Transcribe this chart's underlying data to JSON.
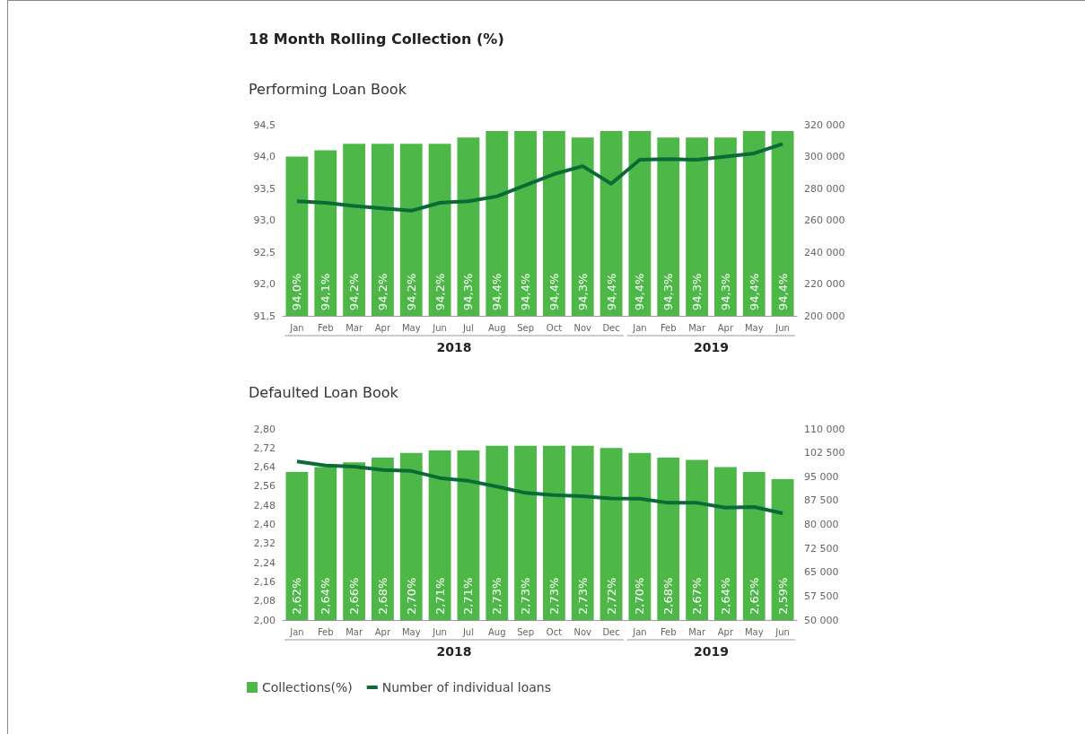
{
  "chart_data": [
    {
      "type": "bar",
      "title": "18 Month Rolling Collection (%)",
      "subtitle": "Performing Loan Book",
      "categories": [
        "Jan",
        "Feb",
        "Mar",
        "Apr",
        "May",
        "Jun",
        "Jul",
        "Aug",
        "Sep",
        "Oct",
        "Nov",
        "Dec",
        "Jan",
        "Feb",
        "Mar",
        "Apr",
        "May",
        "Jun"
      ],
      "annotations": [
        "2018",
        "2019"
      ],
      "series": [
        {
          "color": "#4db848",
          "values": [
            94.0,
            94.1,
            94.2,
            94.2,
            94.2,
            94.2,
            94.3,
            94.4,
            94.4,
            94.4,
            94.3,
            94.4,
            94.4,
            94.3,
            94.3,
            94.3,
            94.4,
            94.4
          ],
          "value_labels": [
            "94,0%",
            "94,1%",
            "94,2%",
            "94,2%",
            "94,2%",
            "94,2%",
            "94,3%",
            "94,4%",
            "94,4%",
            "94,4%",
            "94,3%",
            "94,4%",
            "94,4%",
            "94,3%",
            "94,3%",
            "94,3%",
            "94,4%",
            "94,4%"
          ]
        },
        {
          "type": "line",
          "axis": "y2",
          "color": "#0b6a36",
          "values": [
            272000,
            271000,
            269000,
            267500,
            266000,
            271000,
            272000,
            275000,
            282000,
            289000,
            294000,
            283000,
            298000,
            298500,
            298000,
            300000,
            302000,
            308000
          ]
        }
      ],
      "ylim": [
        91.5,
        94.5
      ],
      "yticks": [
        {
          "value": 91.5,
          "label": "91,5"
        },
        {
          "value": 92.0,
          "label": "92,0"
        },
        {
          "value": 92.5,
          "label": "92,5"
        },
        {
          "value": 93.0,
          "label": "93,0"
        },
        {
          "value": 93.5,
          "label": "93,5"
        },
        {
          "value": 94.0,
          "label": "94,0"
        },
        {
          "value": 94.5,
          "label": "94,5"
        }
      ],
      "y2lim": [
        200000,
        320000
      ],
      "y2ticks": [
        {
          "value": 200000,
          "label": "200 000"
        },
        {
          "value": 220000,
          "label": "220 000"
        },
        {
          "value": 240000,
          "label": "240 000"
        },
        {
          "value": 260000,
          "label": "260 000"
        },
        {
          "value": 280000,
          "label": "280 000"
        },
        {
          "value": 300000,
          "label": "300 000"
        },
        {
          "value": 320000,
          "label": "320 000"
        }
      ],
      "grid": false,
      "legend": false
    },
    {
      "type": "bar",
      "title": "Defaulted Loan Book",
      "categories": [
        "Jan",
        "Feb",
        "Mar",
        "Apr",
        "May",
        "Jun",
        "Jul",
        "Aug",
        "Sep",
        "Oct",
        "Nov",
        "Dec",
        "Jan",
        "Feb",
        "Mar",
        "Apr",
        "May",
        "Jun"
      ],
      "annotations": [
        "2018",
        "2019"
      ],
      "series": [
        {
          "name": "Collections(%)",
          "color": "#4db848",
          "values": [
            2.62,
            2.64,
            2.66,
            2.68,
            2.7,
            2.71,
            2.71,
            2.73,
            2.73,
            2.73,
            2.73,
            2.72,
            2.7,
            2.68,
            2.67,
            2.64,
            2.62,
            2.59
          ],
          "value_labels": [
            "2,62%",
            "2,64%",
            "2,66%",
            "2,68%",
            "2,70%",
            "2,71%",
            "2,71%",
            "2,73%",
            "2,73%",
            "2,73%",
            "2,73%",
            "2,72%",
            "2,70%",
            "2,68%",
            "2,67%",
            "2,64%",
            "2,62%",
            "2,59%"
          ]
        },
        {
          "type": "line",
          "name": "Number of individual loans",
          "axis": "y2",
          "color": "#0b6a36",
          "values": [
            99800,
            98500,
            98200,
            97100,
            96800,
            94600,
            93700,
            91900,
            89900,
            89200,
            88900,
            88200,
            88100,
            86800,
            86800,
            85300,
            85500,
            83500
          ]
        }
      ],
      "ylim": [
        2.0,
        2.8
      ],
      "yticks": [
        {
          "value": 2.0,
          "label": "2,00"
        },
        {
          "value": 2.08,
          "label": "2,08"
        },
        {
          "value": 2.16,
          "label": "2,16"
        },
        {
          "value": 2.24,
          "label": "2,24"
        },
        {
          "value": 2.32,
          "label": "2,32"
        },
        {
          "value": 2.4,
          "label": "2,40"
        },
        {
          "value": 2.48,
          "label": "2,48"
        },
        {
          "value": 2.56,
          "label": "2,56"
        },
        {
          "value": 2.64,
          "label": "2,64"
        },
        {
          "value": 2.72,
          "label": "2,72"
        },
        {
          "value": 2.8,
          "label": "2,80"
        }
      ],
      "y2lim": [
        50000,
        110000
      ],
      "y2ticks": [
        {
          "value": 50000,
          "label": "50 000"
        },
        {
          "value": 57500,
          "label": "57 500"
        },
        {
          "value": 65000,
          "label": "65 000"
        },
        {
          "value": 72500,
          "label": "72 500"
        },
        {
          "value": 80000,
          "label": "80 000"
        },
        {
          "value": 87500,
          "label": "87 500"
        },
        {
          "value": 95000,
          "label": "95 000"
        },
        {
          "value": 102500,
          "label": "102 500"
        },
        {
          "value": 110000,
          "label": "110 000"
        }
      ],
      "grid": false,
      "legend": "bottom left"
    }
  ]
}
